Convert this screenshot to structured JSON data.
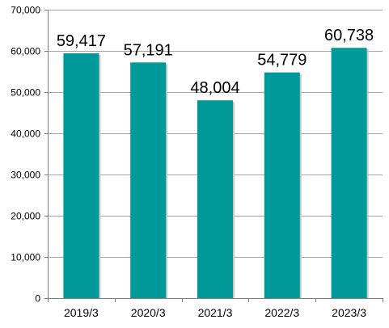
{
  "chart_data": {
    "type": "bar",
    "categories": [
      "2019/3",
      "2020/3",
      "2021/3",
      "2022/3",
      "2023/3"
    ],
    "values": [
      59417,
      57191,
      48004,
      54779,
      60738
    ],
    "value_labels": [
      "59,417",
      "57,191",
      "48,004",
      "54,779",
      "60,738"
    ],
    "ylim": [
      0,
      70000
    ],
    "yticks": [
      0,
      10000,
      20000,
      30000,
      40000,
      50000,
      60000,
      70000
    ],
    "ytick_labels": [
      "0",
      "10,000",
      "20,000",
      "30,000",
      "40,000",
      "50,000",
      "60,000",
      "70,000"
    ],
    "grid": true,
    "bar_color": "#009999",
    "grid_color": "#a6a6a6",
    "axis_color": "#7f7f7f"
  }
}
